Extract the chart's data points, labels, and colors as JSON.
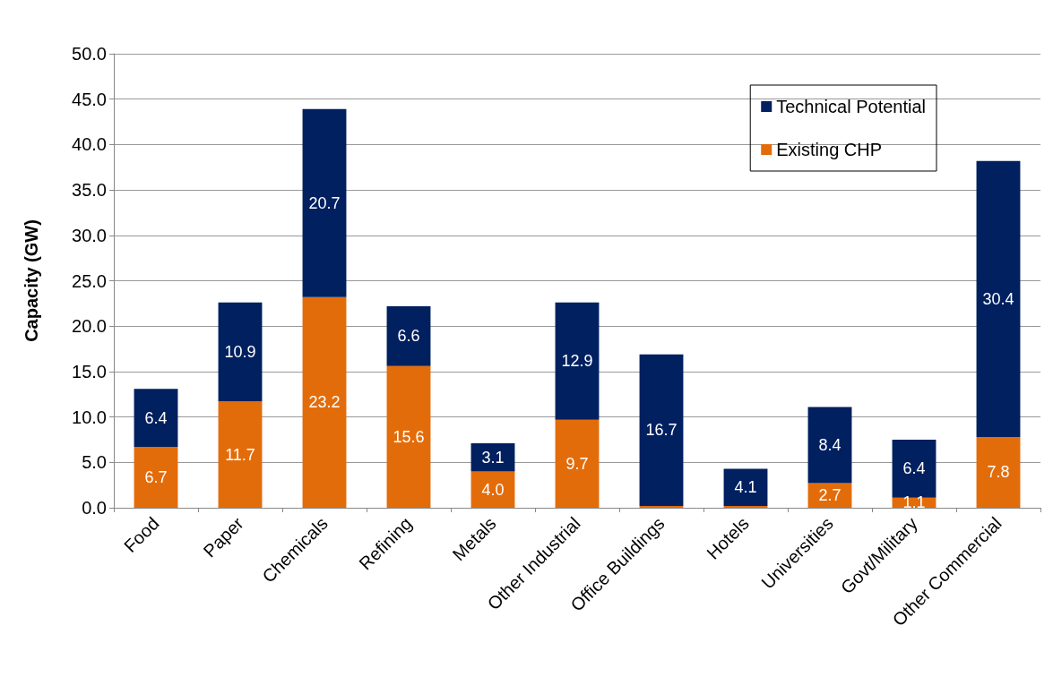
{
  "chart_data": {
    "type": "bar",
    "stacked": true,
    "ylabel": "Capacity (GW)",
    "categories": [
      "Food",
      "Paper",
      "Chemicals",
      "Refining",
      "Metals",
      "Other Industrial",
      "Office Buildings",
      "Hotels",
      "Universities",
      "Govt/Military",
      "Other Commercial"
    ],
    "series": [
      {
        "name": "Existing CHP",
        "color": "#e36c0a",
        "values": [
          6.7,
          11.7,
          23.2,
          15.6,
          4.0,
          9.7,
          0.2,
          0.2,
          2.7,
          1.1,
          7.8
        ],
        "value_labels": [
          "6.7",
          "11.7",
          "23.2",
          "15.6",
          "4.0",
          "9.7",
          null,
          null,
          "2.7",
          "1.1",
          "7.8"
        ]
      },
      {
        "name": "Technical Potential",
        "color": "#002060",
        "values": [
          6.4,
          10.9,
          20.7,
          6.6,
          3.1,
          12.9,
          16.7,
          4.1,
          8.4,
          6.4,
          30.4
        ],
        "value_labels": [
          "6.4",
          "10.9",
          "20.7",
          "6.6",
          "3.1",
          "12.9",
          "16.7",
          "4.1",
          "8.4",
          "6.4",
          "30.4"
        ]
      }
    ],
    "ylim": [
      0,
      50
    ],
    "yticks": [
      {
        "value": 0,
        "label": "0.0"
      },
      {
        "value": 5,
        "label": "5.0"
      },
      {
        "value": 10,
        "label": "10.0"
      },
      {
        "value": 15,
        "label": "15.0"
      },
      {
        "value": 20,
        "label": "20.0"
      },
      {
        "value": 25,
        "label": "25.0"
      },
      {
        "value": 30,
        "label": "30.0"
      },
      {
        "value": 35,
        "label": "35.0"
      },
      {
        "value": 40,
        "label": "40.0"
      },
      {
        "value": 45,
        "label": "45.0"
      },
      {
        "value": 50,
        "label": "50.0"
      }
    ],
    "grid": "y",
    "legend": "top right"
  }
}
